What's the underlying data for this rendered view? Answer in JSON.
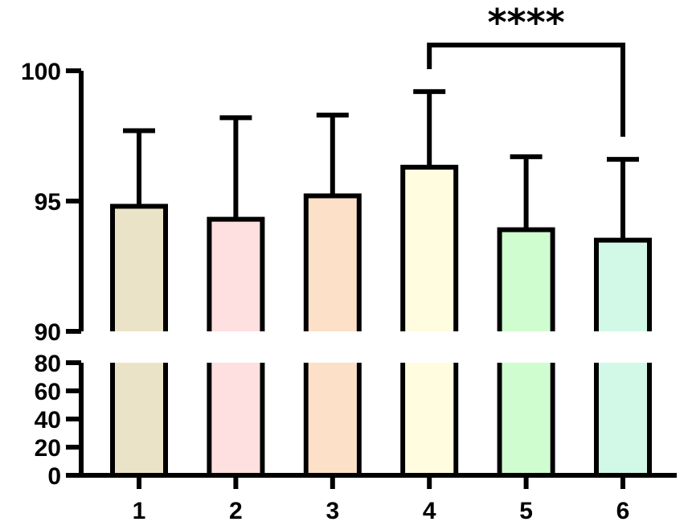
{
  "chart_data": {
    "type": "bar",
    "categories": [
      "1",
      "2",
      "3",
      "4",
      "5",
      "6"
    ],
    "values": [
      94.8,
      94.3,
      95.2,
      96.3,
      93.9,
      93.5
    ],
    "error_upper": [
      97.7,
      98.2,
      98.3,
      99.2,
      96.7,
      96.6
    ],
    "colors": [
      "#ebe3c8",
      "#fde0df",
      "#fde0c8",
      "#fffce0",
      "#d0fdd0",
      "#d2f8e8"
    ],
    "title": "",
    "xlabel": "",
    "ylabel": "",
    "axis_break": {
      "lower": [
        0,
        80
      ],
      "upper": [
        90,
        100
      ]
    },
    "yticks_upper": [
      90,
      95,
      100
    ],
    "yticks_lower": [
      0,
      20,
      40,
      60,
      80
    ],
    "significance": {
      "label": "****",
      "from_category": "4",
      "to_category": "6"
    },
    "grid": false,
    "legend": "none"
  }
}
